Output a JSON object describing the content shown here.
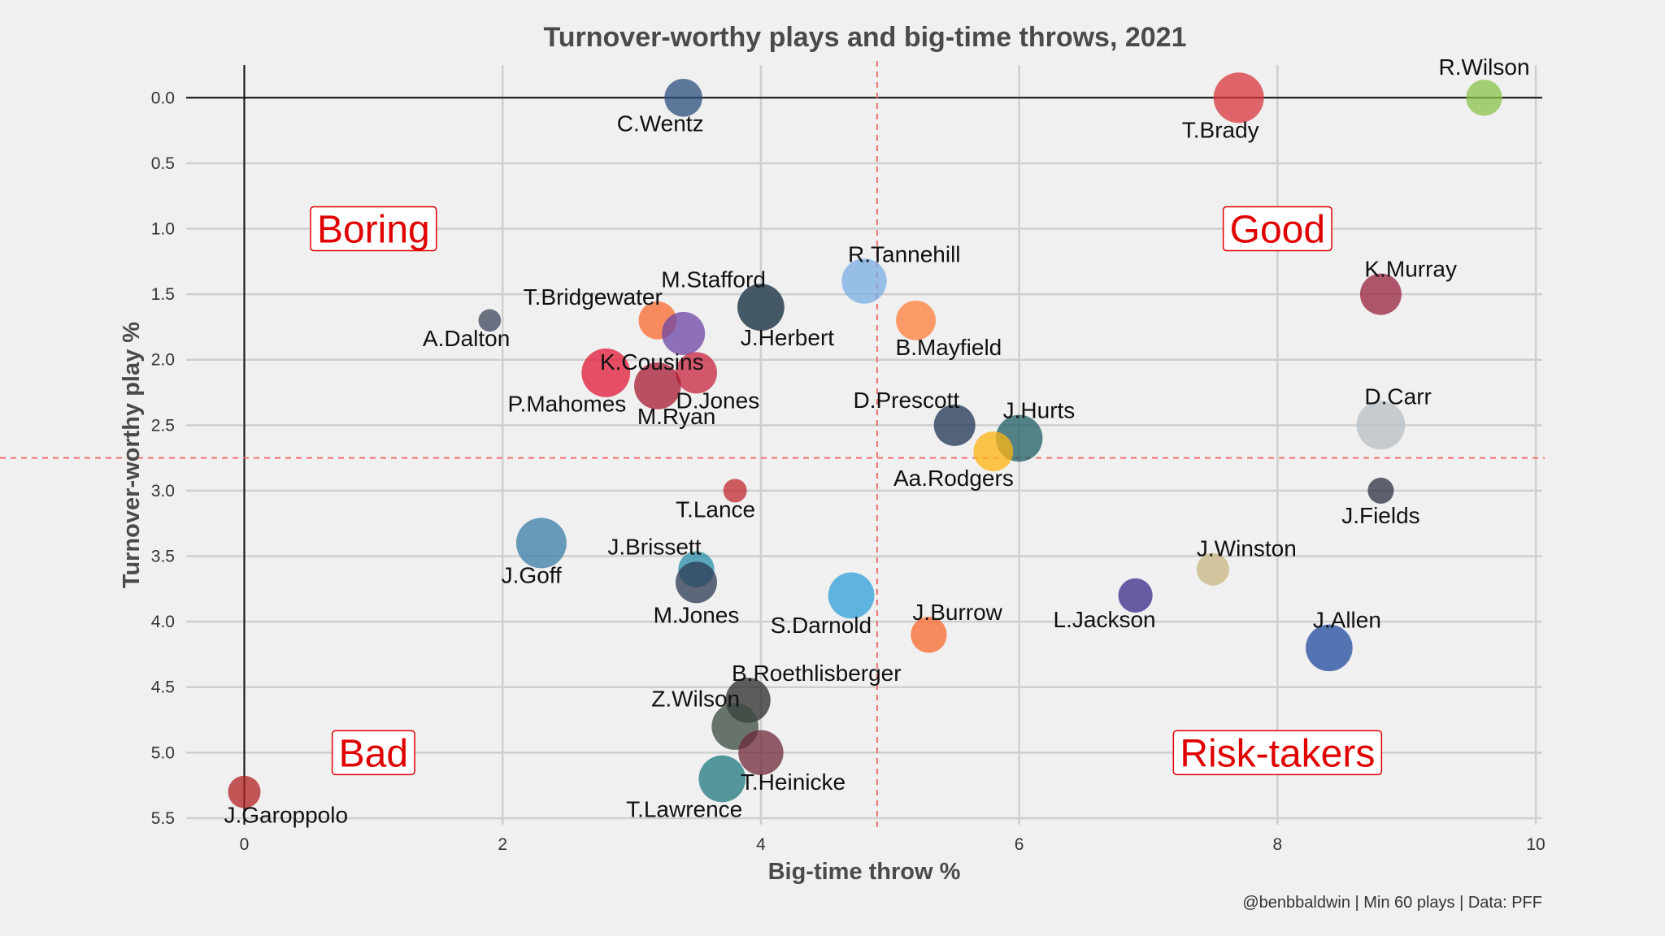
{
  "chart_data": {
    "type": "scatter",
    "title": "Turnover-worthy plays and big-time throws, 2021",
    "xlabel": "Big-time throw %",
    "ylabel": "Turnover-worthy play %",
    "caption": "@benbbaldwin | Min 60 plays | Data: PFF",
    "xlim": [
      -0.45,
      10.05
    ],
    "ylim": [
      5.55,
      -0.25
    ],
    "y_reversed": true,
    "x_ticks": [
      0,
      2,
      4,
      6,
      8,
      10
    ],
    "y_ticks": [
      0.0,
      0.5,
      1.0,
      1.5,
      2.0,
      2.5,
      3.0,
      3.5,
      4.0,
      4.5,
      5.0,
      5.5
    ],
    "grid": true,
    "reference_lines": {
      "vertical_mean_x": 4.9,
      "horizontal_mean_y": 2.75
    },
    "quadrants": [
      {
        "label": "Boring",
        "x": 1.0,
        "y": 1.0
      },
      {
        "label": "Good",
        "x": 8.0,
        "y": 1.0
      },
      {
        "label": "Bad",
        "x": 1.0,
        "y": 5.0
      },
      {
        "label": "Risk-takers",
        "x": 8.0,
        "y": 5.0
      }
    ],
    "points": [
      {
        "name": "C.Wentz",
        "x": 3.4,
        "y": 0.0,
        "size": 0.65,
        "color": "#2b4f7e",
        "label_pos": "below-left"
      },
      {
        "name": "T.Brady",
        "x": 7.7,
        "y": 0.0,
        "size": 1.0,
        "color": "#d9363e",
        "label_pos": "below-left"
      },
      {
        "name": "R.Wilson",
        "x": 9.6,
        "y": 0.0,
        "size": 0.6,
        "color": "#8bc34a",
        "label_pos": "above"
      },
      {
        "name": "R.Tannehill",
        "x": 4.8,
        "y": 1.4,
        "size": 0.85,
        "color": "#7aaee3",
        "label_pos": "above-right"
      },
      {
        "name": "K.Murray",
        "x": 8.8,
        "y": 1.5,
        "size": 0.75,
        "color": "#97233f",
        "label_pos": "above-right"
      },
      {
        "name": "M.Stafford",
        "x": 4.0,
        "y": 1.6,
        "size": 0.9,
        "color": "#0c2340",
        "label_pos": "above-left"
      },
      {
        "name": "J.Herbert",
        "x": 4.0,
        "y": 1.6,
        "size": 0.9,
        "color": "#455a64",
        "label_pos": "below-right"
      },
      {
        "name": "T.Bridgewater",
        "x": 3.2,
        "y": 1.7,
        "size": 0.65,
        "color": "#fb6a2e",
        "label_pos": "above-left"
      },
      {
        "name": "A.Dalton",
        "x": 1.9,
        "y": 1.7,
        "size": 0.22,
        "color": "#3d4559",
        "label_pos": "below-left"
      },
      {
        "name": "B.Mayfield",
        "x": 5.2,
        "y": 1.7,
        "size": 0.7,
        "color": "#ff7e3a",
        "label_pos": "below-right"
      },
      {
        "name": "K.Cousins",
        "x": 3.4,
        "y": 1.8,
        "size": 0.8,
        "color": "#6e46a6",
        "label_pos": "below-left"
      },
      {
        "name": "P.Mahomes",
        "x": 2.8,
        "y": 2.1,
        "size": 0.95,
        "color": "#e31837",
        "label_pos": "below-left"
      },
      {
        "name": "D.Jones",
        "x": 3.5,
        "y": 2.1,
        "size": 0.75,
        "color": "#c9243f",
        "label_pos": "below-right"
      },
      {
        "name": "M.Ryan",
        "x": 3.2,
        "y": 2.2,
        "size": 0.9,
        "color": "#a71930",
        "label_pos": "below-right"
      },
      {
        "name": "D.Prescott",
        "x": 5.5,
        "y": 2.5,
        "size": 0.75,
        "color": "#1f3454",
        "label_pos": "above-left"
      },
      {
        "name": "J.Hurts",
        "x": 6.0,
        "y": 2.6,
        "size": 0.9,
        "color": "#1f5d63",
        "label_pos": "above-right"
      },
      {
        "name": "D.Carr",
        "x": 8.8,
        "y": 2.5,
        "size": 0.95,
        "color": "#b8bfc4",
        "label_pos": "above-right"
      },
      {
        "name": "Aa.Rodgers",
        "x": 5.8,
        "y": 2.7,
        "size": 0.7,
        "color": "#ffb612",
        "label_pos": "below-left"
      },
      {
        "name": "T.Lance",
        "x": 3.8,
        "y": 3.0,
        "size": 0.25,
        "color": "#c0282e",
        "label_pos": "below-left"
      },
      {
        "name": "J.Fields",
        "x": 8.8,
        "y": 3.0,
        "size": 0.32,
        "color": "#2c3242",
        "label_pos": "below"
      },
      {
        "name": "J.Goff",
        "x": 2.3,
        "y": 3.4,
        "size": 1.0,
        "color": "#3a7ca5",
        "label_pos": "below-left"
      },
      {
        "name": "J.Brissett",
        "x": 3.5,
        "y": 3.6,
        "size": 0.6,
        "color": "#2a8ea8",
        "label_pos": "above-left"
      },
      {
        "name": "M.Jones",
        "x": 3.5,
        "y": 3.7,
        "size": 0.75,
        "color": "#2b3a52",
        "label_pos": "below"
      },
      {
        "name": "J.Winston",
        "x": 7.5,
        "y": 3.6,
        "size": 0.5,
        "color": "#c8b682",
        "label_pos": "above-right"
      },
      {
        "name": "L.Jackson",
        "x": 6.9,
        "y": 3.8,
        "size": 0.55,
        "color": "#3c2a8a",
        "label_pos": "below-left"
      },
      {
        "name": "S.Darnold",
        "x": 4.7,
        "y": 3.8,
        "size": 0.88,
        "color": "#2e9fda",
        "label_pos": "below-left"
      },
      {
        "name": "J.Burrow",
        "x": 5.3,
        "y": 4.1,
        "size": 0.6,
        "color": "#fb6a2e",
        "label_pos": "above-right"
      },
      {
        "name": "J.Allen",
        "x": 8.4,
        "y": 4.2,
        "size": 0.9,
        "color": "#1f4a9e",
        "label_pos": "above-right"
      },
      {
        "name": "B.Roethlisberger",
        "x": 3.9,
        "y": 4.6,
        "size": 0.85,
        "color": "#2b2b2b",
        "label_pos": "above-right"
      },
      {
        "name": "Z.Wilson",
        "x": 3.8,
        "y": 4.8,
        "size": 0.9,
        "color": "#3b4a3f",
        "label_pos": "above-left"
      },
      {
        "name": "T.Heinicke",
        "x": 4.0,
        "y": 5.0,
        "size": 0.85,
        "color": "#6e2a3a",
        "label_pos": "below-right"
      },
      {
        "name": "T.Lawrence",
        "x": 3.7,
        "y": 5.2,
        "size": 0.9,
        "color": "#1f7a80",
        "label_pos": "below-left"
      },
      {
        "name": "J.Garoppolo",
        "x": 0.0,
        "y": 5.3,
        "size": 0.5,
        "color": "#b22222",
        "label_pos": "below-right"
      }
    ]
  }
}
